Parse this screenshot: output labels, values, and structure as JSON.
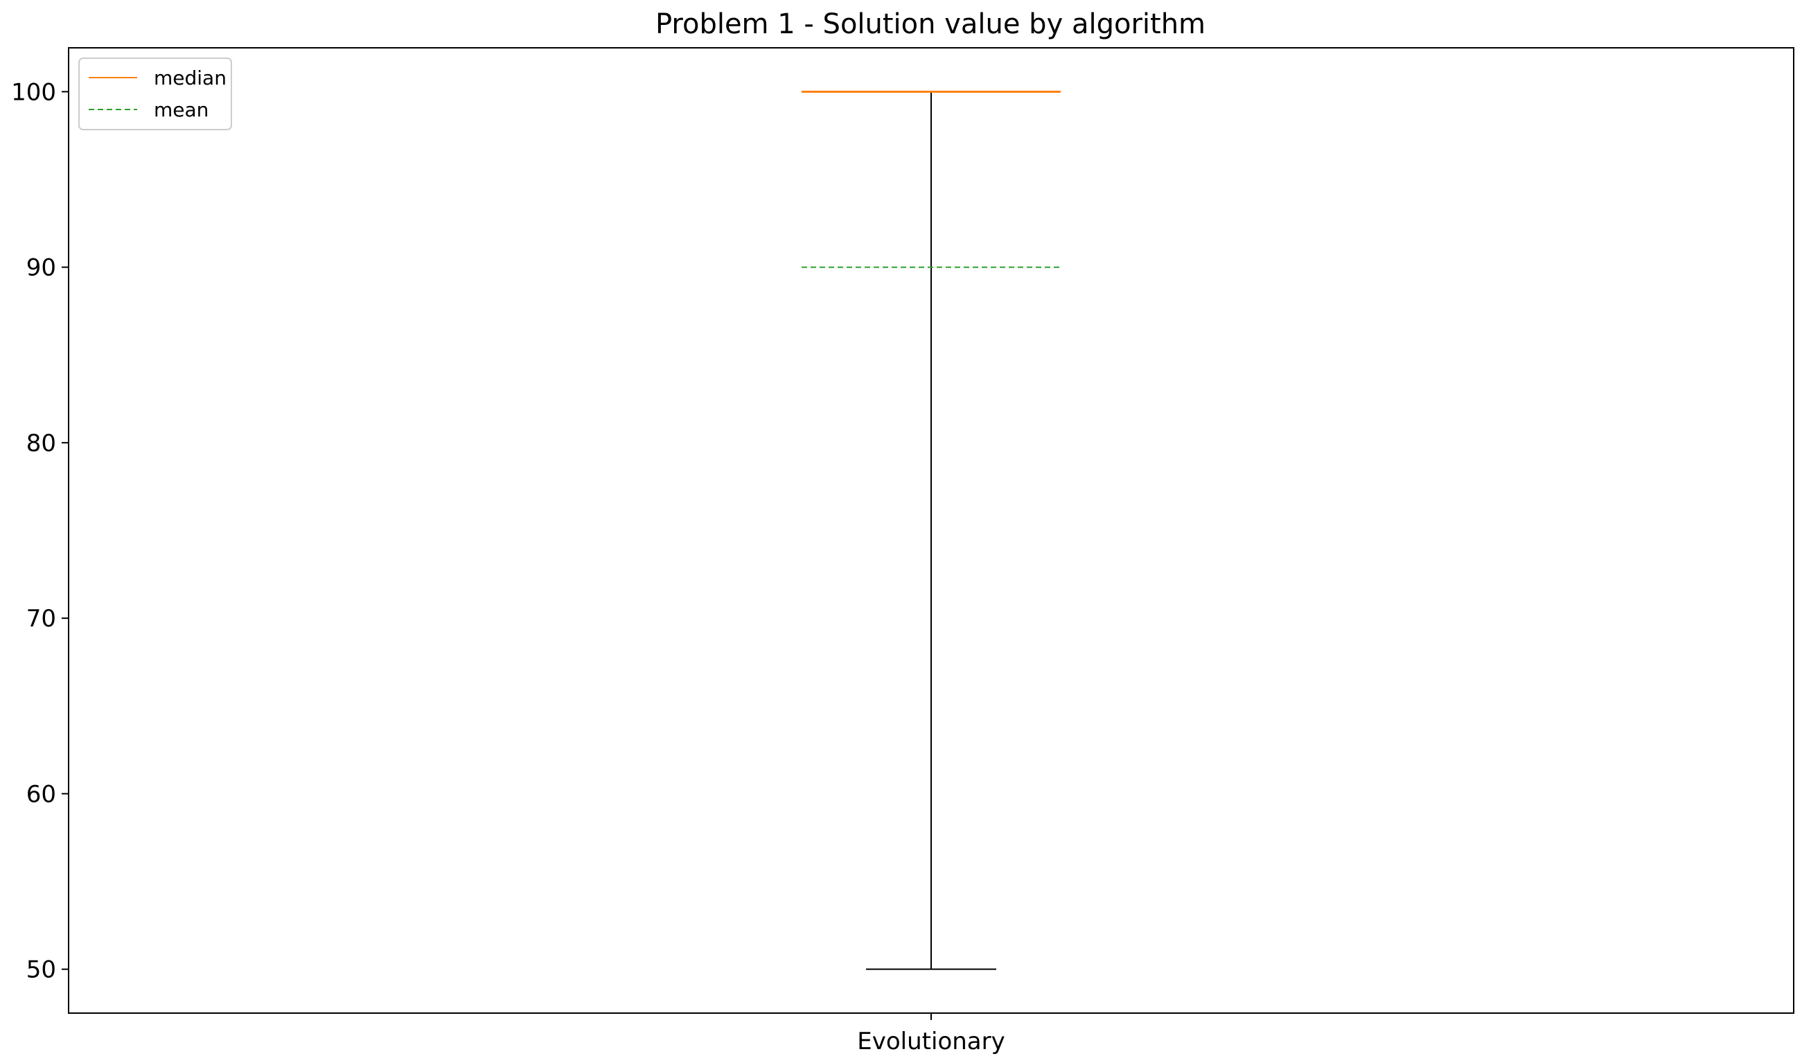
{
  "chart_data": {
    "type": "box",
    "title": "Problem 1 - Solution value by algorithm",
    "xlabel": "",
    "ylabel": "",
    "categories": [
      "Evolutionary"
    ],
    "boxes": [
      {
        "category": "Evolutionary",
        "whisker_low": 50,
        "q1": 100,
        "median": 100,
        "q3": 100,
        "whisker_high": 100,
        "mean": 90
      }
    ],
    "ylim": [
      47.5,
      102.5
    ],
    "yticks": [
      50,
      60,
      70,
      80,
      90,
      100
    ],
    "grid": false,
    "legend": {
      "position": "top-left",
      "entries": [
        {
          "label": "median",
          "color": "#ff7f0e",
          "style": "solid"
        },
        {
          "label": "mean",
          "color": "#2ca02c",
          "style": "dashed"
        }
      ]
    },
    "colors": {
      "median": "#ff7f0e",
      "mean": "#2ca02c",
      "whisker": "#000000"
    }
  }
}
